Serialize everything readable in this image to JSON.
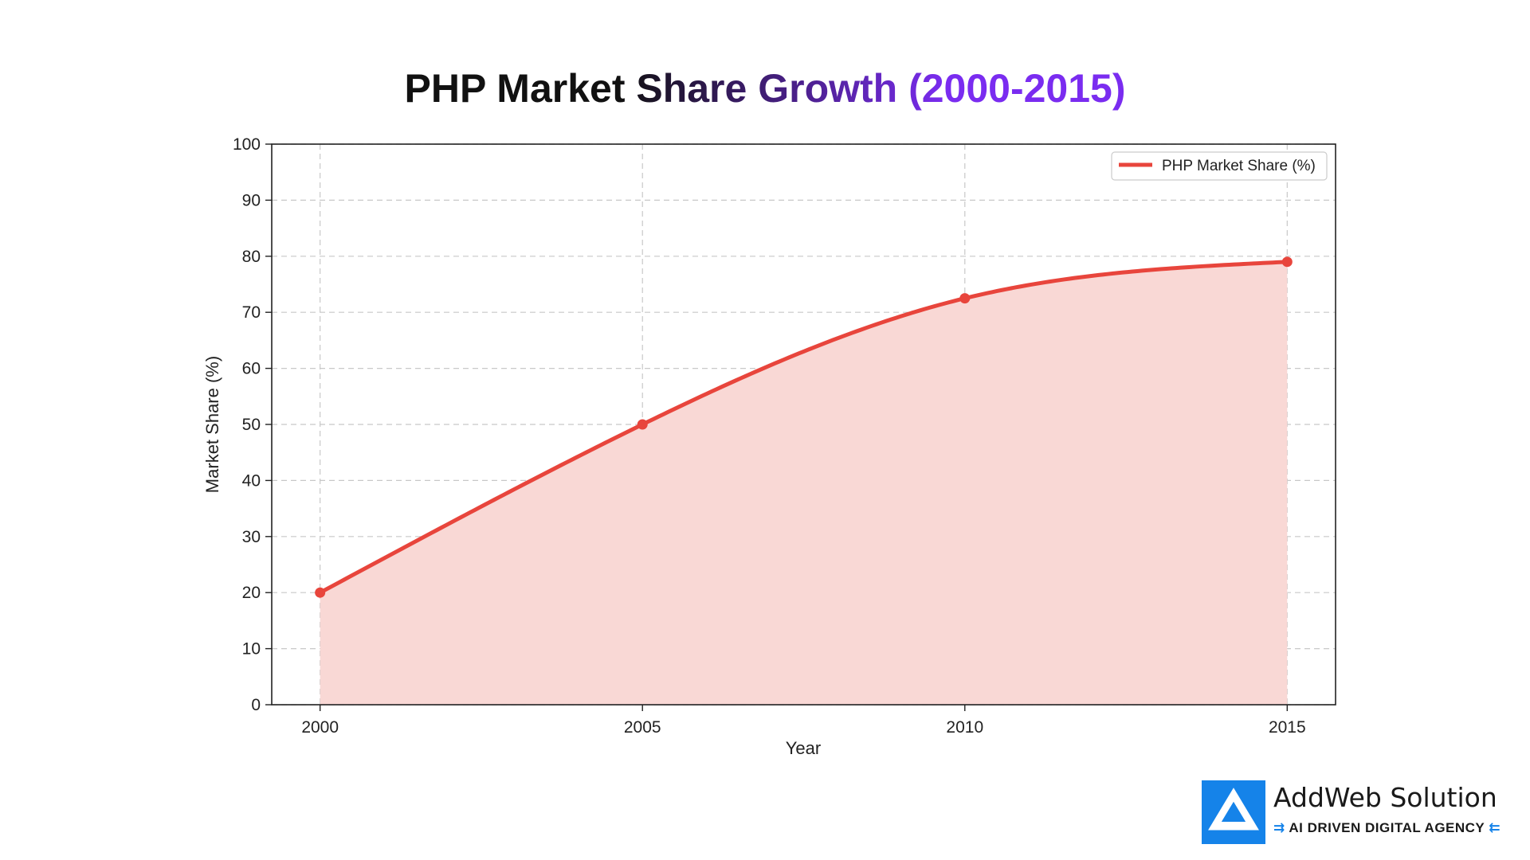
{
  "colors": {
    "line": "#e8453c",
    "fill": "#f9d8d5",
    "title_start": "#111111",
    "title_end": "#7a2cf0",
    "brand_blue": "#1583e9"
  },
  "chart_data": {
    "type": "area",
    "title": "PHP Market Share Growth (2000-2015)",
    "xlabel": "Year",
    "ylabel": "Market Share (%)",
    "x": [
      2000,
      2005,
      2010,
      2015
    ],
    "x_tick_labels": [
      "2000",
      "2005",
      "2010",
      "2015"
    ],
    "y_ticks": [
      0,
      10,
      20,
      30,
      40,
      50,
      60,
      70,
      80,
      90,
      100
    ],
    "xlim": [
      1999.25,
      2015.75
    ],
    "ylim": [
      0,
      100
    ],
    "grid": true,
    "legend_position": "top-right",
    "series": [
      {
        "name": "PHP Market Share (%)",
        "values": [
          20,
          50,
          72.5,
          79
        ],
        "smooth": true,
        "filled": true
      }
    ]
  },
  "branding": {
    "logo_icon": "addweb-logo-icon",
    "name": "AddWeb Solution",
    "tagline": "AI DRIVEN DIGITAL AGENCY"
  }
}
